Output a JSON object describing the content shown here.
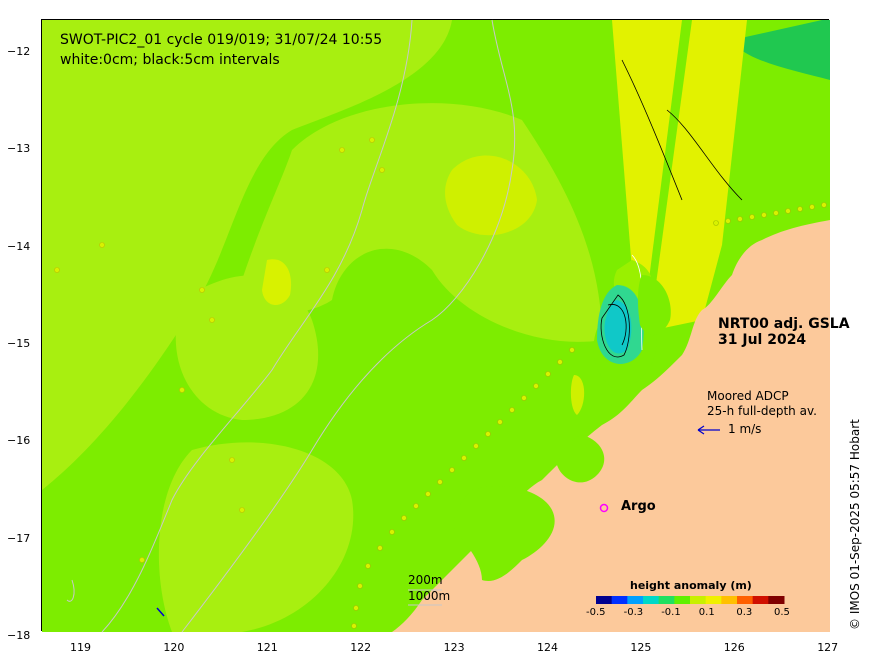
{
  "header": {
    "title_line1": "SWOT-PIC2_01 cycle 019/019; 31/07/24 10:55",
    "title_line2": "white:0cm; black:5cm intervals"
  },
  "product": {
    "line1": "NRT00 adj. GSLA",
    "line2": "31 Jul 2024"
  },
  "adcp": {
    "line1": "Moored ADCP",
    "line2": "25-h full-depth av.",
    "scale_label": "1 m/s"
  },
  "argo": {
    "marker": "o",
    "label": "Argo"
  },
  "isobaths": {
    "shallow": "200m",
    "deep": "1000m"
  },
  "colorbar": {
    "title": "height anomaly (m)",
    "ticks": [
      "-0.5",
      "-0.3",
      "-0.1",
      "0.1",
      "0.3",
      "0.5"
    ],
    "colors": [
      "#00008f",
      "#0030ff",
      "#00a0ff",
      "#00d8c8",
      "#20e060",
      "#60f000",
      "#c8f000",
      "#f0f000",
      "#ffc000",
      "#ff6000",
      "#d01000",
      "#800000"
    ]
  },
  "axes": {
    "x_ticks": [
      "119",
      "120",
      "121",
      "122",
      "123",
      "124",
      "125",
      "126",
      "127"
    ],
    "y_ticks": [
      "−12",
      "−13",
      "−14",
      "−15",
      "−16",
      "−17",
      "−18"
    ]
  },
  "credit": "© IMOS 01-Sep-2025 05:57 Hobart",
  "colors": {
    "ocean_base": "#7ded00",
    "land": "#fcc99b",
    "argo_marker": "#ff00ff",
    "adcp_arrow": "#0000cc"
  }
}
